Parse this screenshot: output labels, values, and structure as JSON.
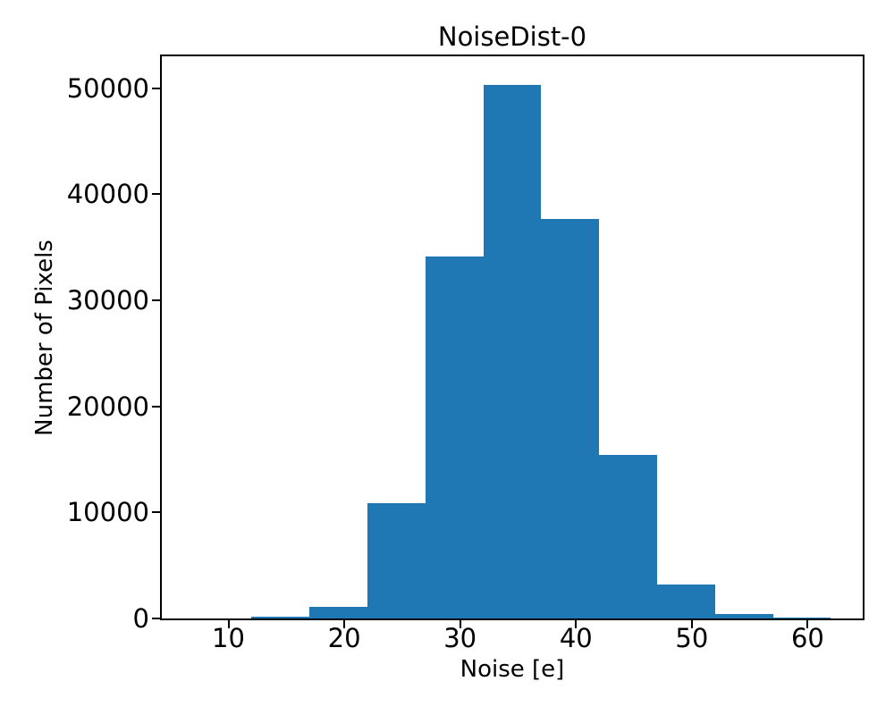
{
  "chart_data": {
    "type": "bar",
    "subtype": "histogram",
    "title": "NoiseDist-0",
    "xlabel": "Noise [e]",
    "ylabel": "Number of Pixels",
    "bin_edges": [
      7,
      12,
      17,
      22,
      27,
      32,
      37,
      42,
      47,
      52,
      57,
      62
    ],
    "counts": [
      20,
      200,
      1100,
      10900,
      34100,
      50300,
      37700,
      15400,
      3200,
      450,
      110
    ],
    "xticks": [
      10,
      20,
      30,
      40,
      50,
      60
    ],
    "yticks": [
      0,
      10000,
      20000,
      30000,
      40000,
      50000
    ],
    "xlim": [
      4.25,
      64.75
    ],
    "ylim": [
      0,
      53000
    ],
    "bar_color": "#1f77b4",
    "axis_color": "#000000",
    "background_color": "#ffffff",
    "grid": false
  }
}
